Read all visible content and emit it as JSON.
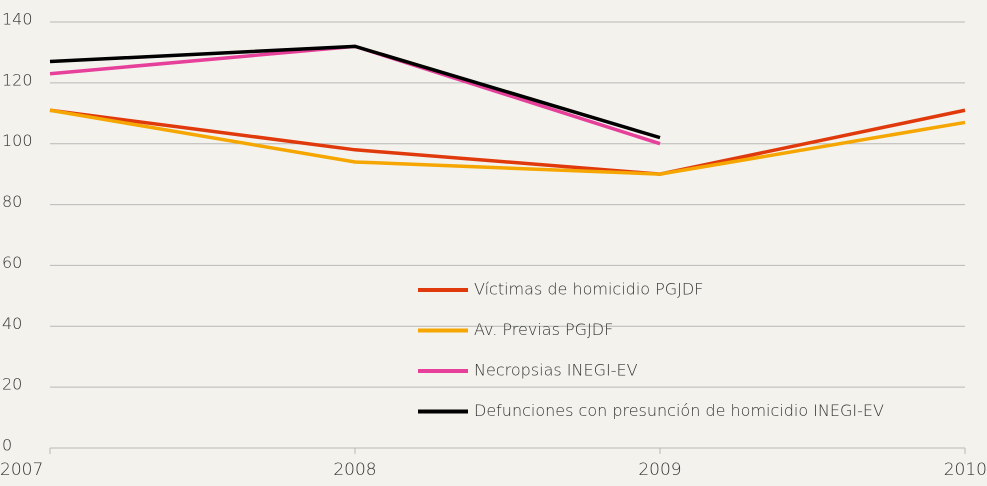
{
  "chart_data": {
    "type": "line",
    "x": [
      2007,
      2008,
      2009,
      2010
    ],
    "xlim": [
      2007,
      2010
    ],
    "xticks": [
      2007,
      2008,
      2009,
      2010
    ],
    "ylim": [
      0,
      140
    ],
    "yticks": [
      0,
      20,
      40,
      60,
      80,
      100,
      120,
      140
    ],
    "grid": true,
    "legend": "lower center",
    "series": [
      {
        "name": "Víctimas de homicidio PGJDF",
        "color": "#e03a0c",
        "values": [
          111,
          98,
          90,
          111
        ]
      },
      {
        "name": "Av. Previas PGJDF",
        "color": "#f5a600",
        "values": [
          111,
          94,
          90,
          107
        ]
      },
      {
        "name": "Necropsias INEGI-EV",
        "color": "#e6409a",
        "values": [
          123,
          132,
          100,
          null
        ]
      },
      {
        "name": "Defunciones con presunción de homicidio INEGI-EV",
        "color": "#000000",
        "values": [
          127,
          132,
          102,
          null
        ]
      }
    ]
  }
}
